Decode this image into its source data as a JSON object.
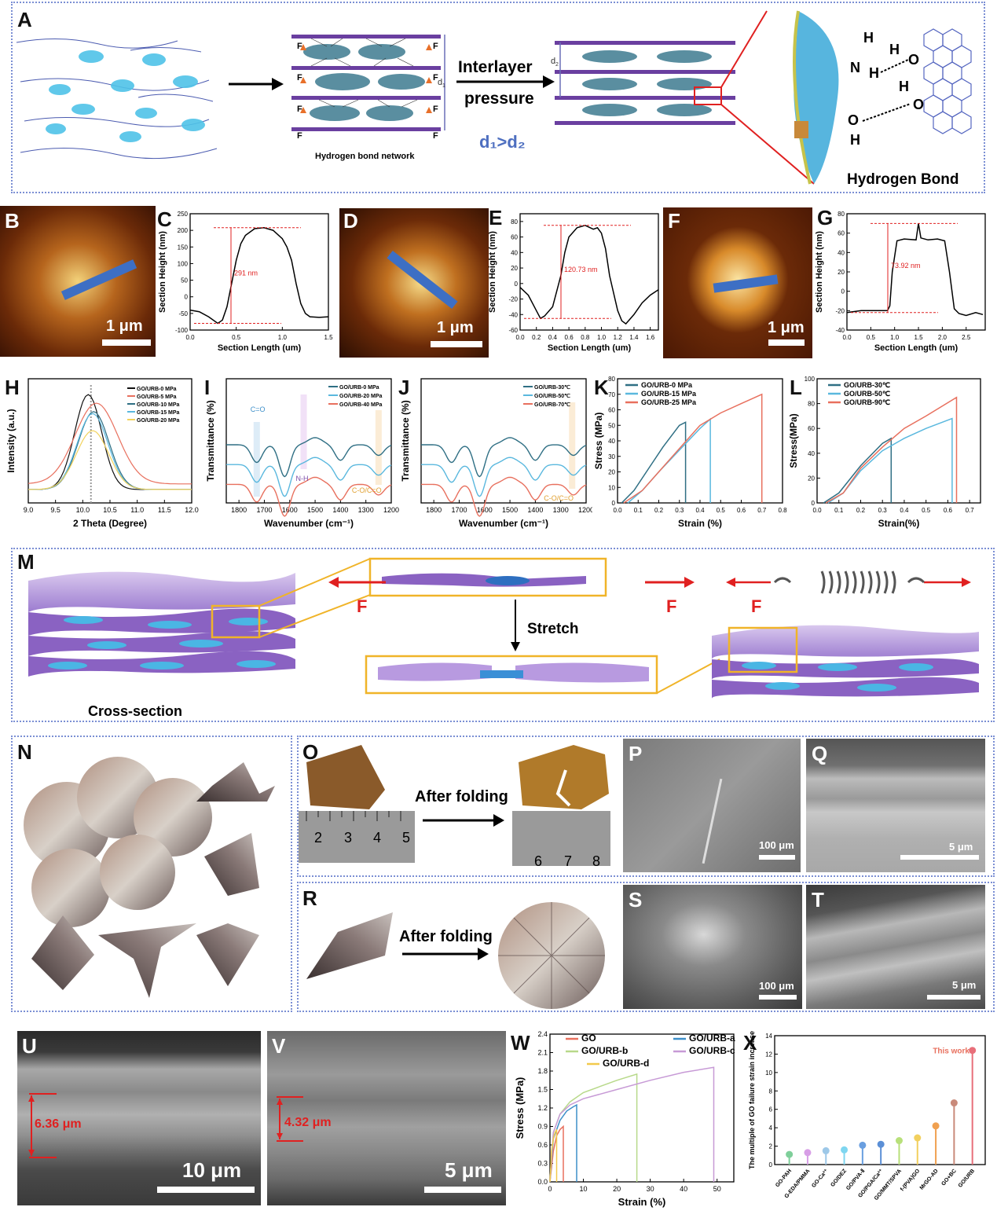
{
  "panels": {
    "A": "A",
    "B": "B",
    "C": "C",
    "D": "D",
    "E": "E",
    "F": "F",
    "G": "G",
    "H": "H",
    "I": "I",
    "J": "J",
    "K": "K",
    "L": "L",
    "M": "M",
    "N": "N",
    "O": "O",
    "P": "P",
    "Q": "Q",
    "R": "R",
    "S": "S",
    "T": "T",
    "U": "U",
    "V": "V",
    "W": "W",
    "X": "X"
  },
  "schematic_a": {
    "hbond_network": "Hydrogen bond network",
    "interlayer": "Interlayer",
    "pressure": "pressure",
    "d1": "d",
    "d1_sub": "1",
    "d2": "d",
    "d2_sub": "2",
    "compare": "d₁>d₂",
    "hydrogen_bond": "Hydrogen Bond",
    "force": "F",
    "atoms": {
      "H": "H",
      "N": "N",
      "O": "O"
    }
  },
  "afm": {
    "scale": "1 μm",
    "c_height": "291 nm",
    "e_height": "120.73 nm",
    "g_height": "73.92 nm",
    "xlabel": "Section Length (um)",
    "ylabel": "Section Height (nm)"
  },
  "schematic_m": {
    "stretch": "Stretch",
    "force": "F",
    "cross_section": "Cross-section"
  },
  "folding": {
    "after_folding_o": "After folding",
    "after_folding_r": "After folding",
    "ruler_o": [
      "2",
      "3",
      "4",
      "5"
    ],
    "ruler_o2": [
      "6",
      "7",
      "8"
    ],
    "p_scale": "100 μm",
    "q_scale": "5 μm",
    "s_scale": "100 μm",
    "t_scale": "5 μm"
  },
  "sem_uv": {
    "u_thickness": "6.36 μm",
    "u_scale": "10 μm",
    "v_thickness": "4.32 μm",
    "v_scale": "5 μm"
  },
  "chart_data": [
    {
      "id": "C",
      "type": "line",
      "xlabel": "Section Length (um)",
      "ylabel": "Section Height (nm)",
      "xlim": [
        0,
        1.5
      ],
      "ylim": [
        -100,
        250
      ],
      "xticks": [
        "0.0",
        "0.5",
        "1.0",
        "1.5"
      ],
      "yticks": [
        "-100",
        "-50",
        "0",
        "50",
        "100",
        "150",
        "200",
        "250"
      ],
      "x": [
        0,
        0.1,
        0.2,
        0.3,
        0.35,
        0.4,
        0.45,
        0.5,
        0.55,
        0.6,
        0.7,
        0.8,
        0.9,
        1.0,
        1.05,
        1.1,
        1.15,
        1.2,
        1.25,
        1.3,
        1.4,
        1.5
      ],
      "y": [
        -40,
        -45,
        -60,
        -80,
        -70,
        -30,
        40,
        110,
        160,
        185,
        205,
        208,
        200,
        175,
        150,
        110,
        40,
        -20,
        -50,
        -60,
        -62,
        -60
      ],
      "annotation": "291 nm"
    },
    {
      "id": "E",
      "type": "line",
      "xlabel": "Section Length (um)",
      "ylabel": "Section Height (nm)",
      "xlim": [
        0,
        1.7
      ],
      "ylim": [
        -60,
        90
      ],
      "xticks": [
        "0.0",
        "0.2",
        "0.4",
        "0.6",
        "0.8",
        "1.0",
        "1.2",
        "1.4",
        "1.6"
      ],
      "yticks": [
        "-60",
        "-40",
        "-20",
        "0",
        "20",
        "40",
        "60",
        "80"
      ],
      "x": [
        0,
        0.1,
        0.2,
        0.25,
        0.3,
        0.4,
        0.5,
        0.55,
        0.6,
        0.7,
        0.8,
        0.9,
        0.95,
        1.0,
        1.05,
        1.1,
        1.2,
        1.25,
        1.3,
        1.4,
        1.5,
        1.6,
        1.7
      ],
      "y": [
        -5,
        -15,
        -35,
        -45,
        -42,
        -30,
        10,
        40,
        60,
        72,
        75,
        70,
        72,
        65,
        45,
        10,
        -35,
        -48,
        -52,
        -40,
        -25,
        -15,
        -8
      ],
      "annotation": "120.73 nm"
    },
    {
      "id": "G",
      "type": "line",
      "xlabel": "Section Length (um)",
      "ylabel": "Section Height (nm)",
      "xlim": [
        0,
        2.9
      ],
      "ylim": [
        -40,
        80
      ],
      "xticks": [
        "0.0",
        "0.5",
        "1.0",
        "1.5",
        "2.0",
        "2.5"
      ],
      "yticks": [
        "-40",
        "-20",
        "0",
        "20",
        "40",
        "60",
        "80"
      ],
      "x": [
        0,
        0.3,
        0.6,
        0.85,
        0.9,
        0.95,
        1.05,
        1.2,
        1.45,
        1.5,
        1.55,
        1.7,
        1.9,
        2.05,
        2.15,
        2.25,
        2.35,
        2.5,
        2.7,
        2.85
      ],
      "y": [
        -22,
        -20,
        -20,
        -20,
        -15,
        20,
        52,
        54,
        53,
        70,
        55,
        53,
        54,
        52,
        20,
        -18,
        -23,
        -25,
        -22,
        -24
      ],
      "annotation": "73.92 nm"
    },
    {
      "id": "H",
      "type": "line",
      "xlabel": "2 Theta (Degree)",
      "ylabel": "Intensity (a.u.)",
      "xlim": [
        9,
        12
      ],
      "xticks": [
        "9.0",
        "9.5",
        "10.0",
        "10.5",
        "11.0",
        "11.5",
        "12.0"
      ],
      "series": [
        {
          "name": "GO/URB-0 MPa",
          "color": "#111111",
          "peak": 10.1,
          "height": 1.0,
          "width": 0.35
        },
        {
          "name": "GO/URB-5 MPa",
          "color": "#e8705e",
          "peak": 10.25,
          "height": 0.85,
          "width": 0.55
        },
        {
          "name": "GO/URB-10 MPa",
          "color": "#2f6f84",
          "peak": 10.2,
          "height": 0.82,
          "width": 0.4
        },
        {
          "name": "GO/URB-15 MPa",
          "color": "#5ab8de",
          "peak": 10.18,
          "height": 0.8,
          "width": 0.4
        },
        {
          "name": "GO/URB-20 MPa",
          "color": "#f2d35e",
          "peak": 10.18,
          "height": 0.62,
          "width": 0.42
        }
      ]
    },
    {
      "id": "I",
      "type": "line",
      "xlabel": "Wavenumber (cm⁻¹)",
      "ylabel": "Transmittance (%)",
      "xlim": [
        1850,
        1200
      ],
      "xticks": [
        "1800",
        "1700",
        "1600",
        "1500",
        "1400",
        "1300",
        "1200"
      ],
      "annotations": [
        "C=O",
        "N-H",
        "C-O/C=O"
      ],
      "series": [
        {
          "name": "GO/URB-0 MPa",
          "color": "#2f6f84",
          "offset": 0
        },
        {
          "name": "GO/URB-20 MPa",
          "color": "#5ab8de",
          "offset": 1
        },
        {
          "name": "GO/URB-40 MPa",
          "color": "#e8705e",
          "offset": 2
        }
      ]
    },
    {
      "id": "J",
      "type": "line",
      "xlabel": "Wavenumber (cm⁻¹)",
      "ylabel": "Transmittance (%)",
      "xlim": [
        1850,
        1200
      ],
      "xticks": [
        "1800",
        "1700",
        "1600",
        "1500",
        "1400",
        "1300",
        "1200"
      ],
      "annotations": [
        "C-O/C=O"
      ],
      "series": [
        {
          "name": "GO/URB-30℃",
          "color": "#2f6f84",
          "offset": 0
        },
        {
          "name": "GO/URB-50℃",
          "color": "#5ab8de",
          "offset": 1
        },
        {
          "name": "GO/URB-70℃",
          "color": "#e8705e",
          "offset": 2
        }
      ]
    },
    {
      "id": "K",
      "type": "line",
      "xlabel": "Strain (%)",
      "ylabel": "Stress (MPa)",
      "xlim": [
        0,
        0.8
      ],
      "ylim": [
        0,
        80
      ],
      "xticks": [
        "0.0",
        "0.1",
        "0.2",
        "0.3",
        "0.4",
        "0.5",
        "0.6",
        "0.7",
        "0.8"
      ],
      "yticks": [
        "0",
        "10",
        "20",
        "30",
        "40",
        "50",
        "60",
        "70",
        "80"
      ],
      "series": [
        {
          "name": "GO/URB-0 MPa",
          "color": "#2f6f84",
          "x": [
            0.02,
            0.08,
            0.15,
            0.22,
            0.3,
            0.33,
            0.33
          ],
          "y": [
            0,
            8,
            22,
            36,
            50,
            52,
            0
          ]
        },
        {
          "name": "GO/URB-15 MPa",
          "color": "#5ab8de",
          "x": [
            0.05,
            0.12,
            0.2,
            0.3,
            0.4,
            0.45,
            0.45
          ],
          "y": [
            0,
            8,
            20,
            34,
            48,
            54,
            0
          ]
        },
        {
          "name": "GO/URB-25 MPa",
          "color": "#e8705e",
          "x": [
            0.03,
            0.12,
            0.2,
            0.3,
            0.4,
            0.5,
            0.6,
            0.7,
            0.7
          ],
          "y": [
            0,
            8,
            20,
            35,
            50,
            58,
            64,
            70,
            0
          ]
        }
      ]
    },
    {
      "id": "L",
      "type": "line",
      "xlabel": "Strain(%)",
      "ylabel": "Stress(MPa)",
      "xlim": [
        0,
        0.75
      ],
      "ylim": [
        0,
        100
      ],
      "xticks": [
        "0.0",
        "0.1",
        "0.2",
        "0.3",
        "0.4",
        "0.5",
        "0.6",
        "0.7"
      ],
      "yticks": [
        "0",
        "20",
        "40",
        "60",
        "80",
        "100"
      ],
      "series": [
        {
          "name": "GO/URB-30℃",
          "color": "#2f6f84",
          "x": [
            0.03,
            0.1,
            0.2,
            0.3,
            0.34,
            0.34
          ],
          "y": [
            0,
            8,
            30,
            48,
            52,
            0
          ]
        },
        {
          "name": "GO/URB-50℃",
          "color": "#5ab8de",
          "x": [
            0.05,
            0.12,
            0.2,
            0.3,
            0.4,
            0.5,
            0.62,
            0.62
          ],
          "y": [
            0,
            8,
            26,
            42,
            52,
            60,
            68,
            0
          ]
        },
        {
          "name": "GO/URB-90℃",
          "color": "#e8705e",
          "x": [
            0.04,
            0.12,
            0.2,
            0.3,
            0.4,
            0.5,
            0.64,
            0.64
          ],
          "y": [
            0,
            8,
            28,
            45,
            60,
            70,
            85,
            0
          ]
        }
      ]
    },
    {
      "id": "W",
      "type": "line",
      "xlabel": "Strain (%)",
      "ylabel": "Stress (MPa)",
      "xlim": [
        0,
        55
      ],
      "ylim": [
        0,
        2.4
      ],
      "xticks": [
        "0",
        "10",
        "20",
        "30",
        "40",
        "50"
      ],
      "yticks": [
        "0.0",
        "0.3",
        "0.6",
        "0.9",
        "1.2",
        "1.5",
        "1.8",
        "2.1",
        "2.4"
      ],
      "series": [
        {
          "name": "GO",
          "color": "#e8705e",
          "x": [
            0,
            1,
            2,
            3,
            4,
            4
          ],
          "y": [
            0,
            0.5,
            0.75,
            0.85,
            0.9,
            0
          ]
        },
        {
          "name": "GO/URB-a",
          "color": "#3d8fc9",
          "x": [
            0,
            1,
            3,
            5,
            7,
            8,
            8
          ],
          "y": [
            0,
            0.7,
            1.0,
            1.15,
            1.22,
            1.25,
            0
          ]
        },
        {
          "name": "GO/URB-b",
          "color": "#b8d98a",
          "x": [
            0,
            1,
            3,
            6,
            10,
            15,
            20,
            26,
            26
          ],
          "y": [
            0,
            0.8,
            1.1,
            1.3,
            1.45,
            1.55,
            1.65,
            1.75,
            0
          ]
        },
        {
          "name": "GO/URB-c",
          "color": "#c79ad6",
          "x": [
            0,
            1,
            3,
            6,
            10,
            20,
            30,
            40,
            49,
            49
          ],
          "y": [
            0,
            0.8,
            1.1,
            1.25,
            1.35,
            1.5,
            1.65,
            1.78,
            1.86,
            0
          ]
        },
        {
          "name": "GO/URB-d",
          "color": "#f2c94c",
          "x": [
            0,
            0.5,
            1,
            1.5,
            2,
            2
          ],
          "y": [
            0,
            0.5,
            0.7,
            0.8,
            0.85,
            0
          ]
        }
      ]
    },
    {
      "id": "X",
      "type": "scatter",
      "ylabel": "The multiple of GO failure strain increase",
      "ylim": [
        0,
        14
      ],
      "yticks": [
        "0",
        "2",
        "4",
        "6",
        "8",
        "10",
        "12",
        "14"
      ],
      "categories": [
        "GO-PAH",
        "G-EDA/PMMA",
        "GO-Ca²⁺",
        "GO/DEZ",
        "GO/PVA-Ⅱ",
        "GO/PGA/Ca²⁺",
        "GO/MMT/SPVA",
        "f-(PVA)GO",
        "MrGO-AD",
        "GO+BC",
        "GO/URB"
      ],
      "values": [
        1.1,
        1.3,
        1.5,
        1.6,
        2.1,
        2.2,
        2.6,
        2.9,
        4.2,
        6.7,
        12.4
      ],
      "colors": [
        "#7fcf9a",
        "#d79ee6",
        "#9dc8e8",
        "#7fd6f0",
        "#6a9fe0",
        "#5b8fd6",
        "#b8e07a",
        "#f2d05e",
        "#f0a050",
        "#c98a7a",
        "#e86f7a"
      ],
      "annotation": "This work"
    }
  ]
}
